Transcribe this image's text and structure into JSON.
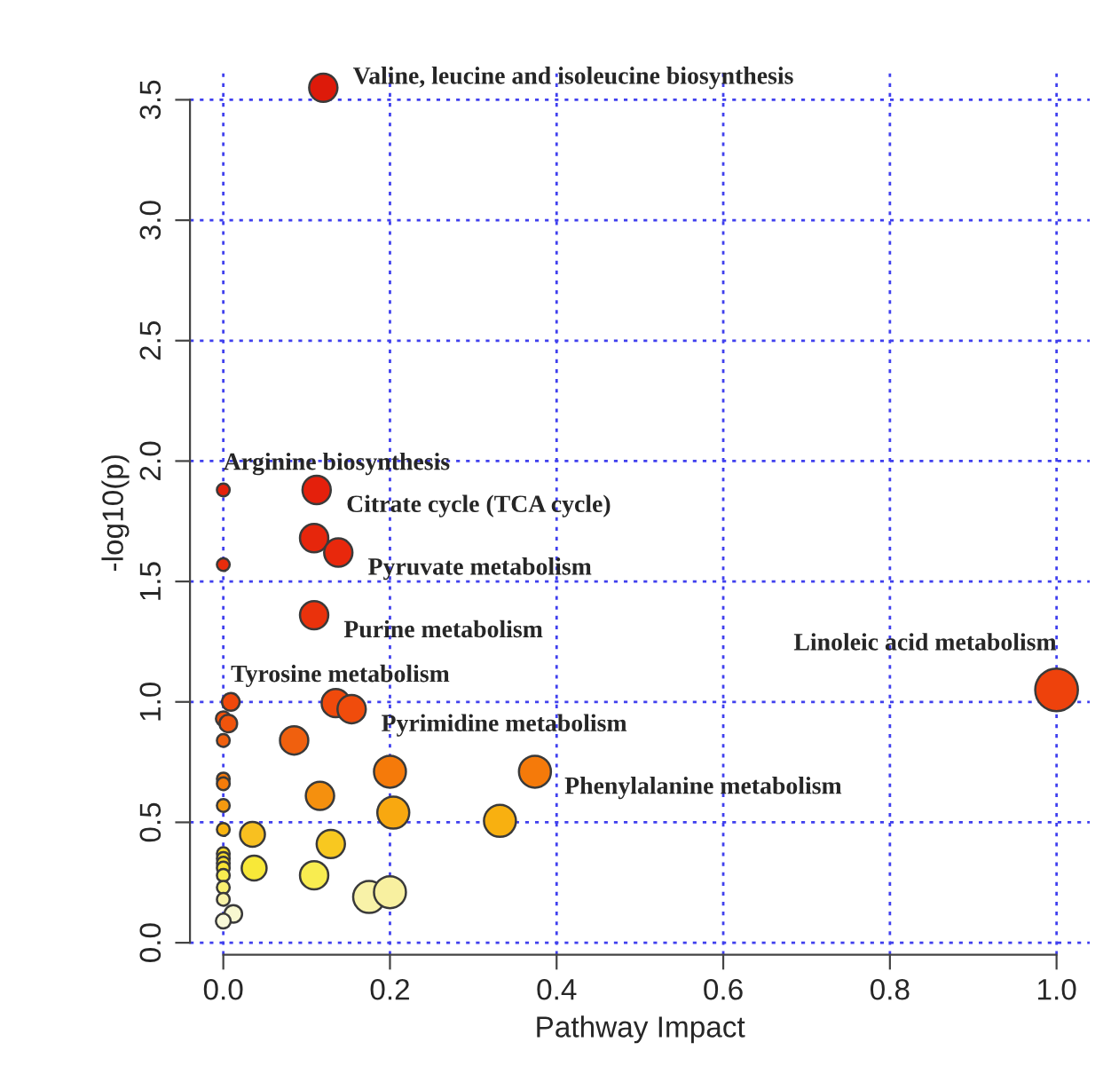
{
  "chart_data": {
    "type": "bubble",
    "xlabel": "Pathway Impact",
    "ylabel": "-log10(p)",
    "x": [
      0.12,
      0,
      0.112,
      0.109,
      0.138,
      0,
      0.109,
      1.0,
      0.009,
      0.135,
      0.154,
      0,
      0.006,
      0,
      0.085,
      0,
      0,
      0.2,
      0.374,
      0.116,
      0,
      0.204,
      0.332,
      0,
      0.035,
      0.129,
      0,
      0,
      0,
      0,
      0.037,
      0,
      0.109,
      0,
      0,
      0.175,
      0.2,
      0.012,
      0
    ],
    "values": [
      3.55,
      1.88,
      1.88,
      1.68,
      1.62,
      1.57,
      1.36,
      1.05,
      1.0,
      0.995,
      0.97,
      0.93,
      0.91,
      0.84,
      0.84,
      0.68,
      0.66,
      0.71,
      0.71,
      0.61,
      0.57,
      0.54,
      0.506,
      0.47,
      0.45,
      0.41,
      0.37,
      0.35,
      0.33,
      0.31,
      0.31,
      0.28,
      0.28,
      0.23,
      0.18,
      0.19,
      0.21,
      0.12,
      0.09
    ],
    "sizes": [
      0.44,
      0.09,
      0.44,
      0.44,
      0.44,
      0.09,
      0.44,
      1.0,
      0.17,
      0.44,
      0.44,
      0.12,
      0.17,
      0.09,
      0.44,
      0.09,
      0.09,
      0.56,
      0.56,
      0.44,
      0.09,
      0.56,
      0.56,
      0.09,
      0.34,
      0.44,
      0.09,
      0.09,
      0.09,
      0.09,
      0.34,
      0.09,
      0.44,
      0.09,
      0.09,
      0.56,
      0.56,
      0.17,
      0.12
    ],
    "colors": [
      "#dd1a0a",
      "#e4200c",
      "#e4200c",
      "#e6260c",
      "#e8280c",
      "#e82c0c",
      "#ea320c",
      "#ee420c",
      "#f0480c",
      "#f04a0c",
      "#f04c0c",
      "#f0520c",
      "#f0540c",
      "#f0600e",
      "#f0600e",
      "#f5780a",
      "#f57c0a",
      "#f57a0a",
      "#f57a0a",
      "#f5900e",
      "#f59a10",
      "#f8a810",
      "#f8b010",
      "#f8b410",
      "#f8c020",
      "#f8c820",
      "#f8d828",
      "#f8dc2c",
      "#f8e030",
      "#f8e434",
      "#f8e838",
      "#f8ec50",
      "#f8ec50",
      "#f8f070",
      "#f8f2a8",
      "#f8f2a8",
      "#f8f0a0",
      "#f8f8d0",
      "#f8f8d8"
    ],
    "xlim": [
      -0.04,
      1.04
    ],
    "ylim": [
      -0.05,
      3.62
    ],
    "xticks": [
      {
        "value": 0,
        "label": "0.0"
      },
      {
        "value": 0.2,
        "label": "0.2"
      },
      {
        "value": 0.4,
        "label": "0.4"
      },
      {
        "value": 0.6,
        "label": "0.6"
      },
      {
        "value": 0.8,
        "label": "0.8"
      },
      {
        "value": 1,
        "label": "1.0"
      }
    ],
    "yticks": [
      {
        "value": 0,
        "label": "0.0"
      },
      {
        "value": 0.5,
        "label": "0.5"
      },
      {
        "value": 1,
        "label": "1.0"
      },
      {
        "value": 1.5,
        "label": "1.5"
      },
      {
        "value": 2,
        "label": "2.0"
      },
      {
        "value": 2.5,
        "label": "2.5"
      },
      {
        "value": 3,
        "label": "3.0"
      },
      {
        "value": 3.5,
        "label": "3.5"
      }
    ],
    "grid": true,
    "annotations": [
      {
        "text": "Valine, leucine and isoleucine biosynthesis",
        "x": 0.12,
        "y": 3.55
      },
      {
        "text": "Arginine biosynthesis",
        "x": 0,
        "y": 1.88
      },
      {
        "text": "Citrate cycle (TCA cycle)",
        "x": 0.112,
        "y": 1.88
      },
      {
        "text": "Pyruvate metabolism",
        "x": 0.138,
        "y": 1.62
      },
      {
        "text": "Purine metabolism",
        "x": 0.109,
        "y": 1.36
      },
      {
        "text": "Linoleic acid metabolism",
        "x": 1.0,
        "y": 1.05
      },
      {
        "text": "Tyrosine metabolism",
        "x": 0.009,
        "y": 1.0
      },
      {
        "text": "Pyrimidine metabolism",
        "x": 0.154,
        "y": 0.97
      },
      {
        "text": "Phenylalanine metabolism",
        "x": 0.374,
        "y": 0.71
      }
    ]
  }
}
